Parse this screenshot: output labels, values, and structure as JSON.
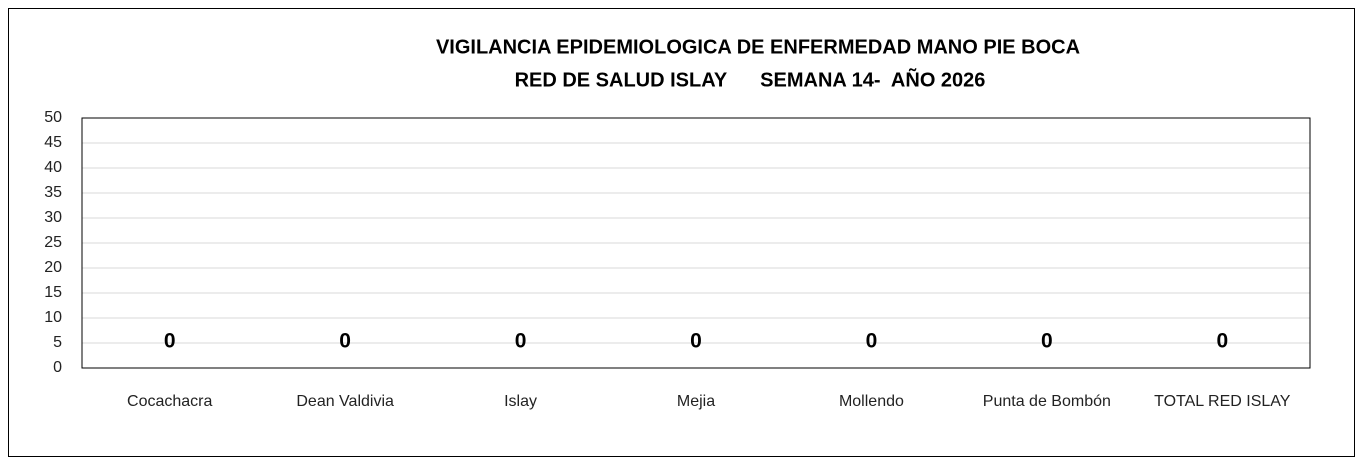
{
  "chart_data": {
    "type": "bar",
    "title": "VIGILANCIA EPIDEMIOLOGICA DE ENFERMEDAD MANO PIE BOCA",
    "subtitle": "RED DE SALUD ISLAY      SEMANA 14-  AÑO 2026",
    "categories": [
      "Cocachacra",
      "Dean Valdivia",
      "Islay",
      "Mejia",
      "Mollendo",
      "Punta de Bombón",
      "TOTAL RED ISLAY"
    ],
    "values": [
      0,
      0,
      0,
      0,
      0,
      0,
      0
    ],
    "color": "#4472c4",
    "ylim": [
      0,
      50
    ],
    "yticks": [
      0,
      5,
      10,
      15,
      20,
      25,
      30,
      35,
      40,
      45,
      50
    ],
    "grid": true
  }
}
